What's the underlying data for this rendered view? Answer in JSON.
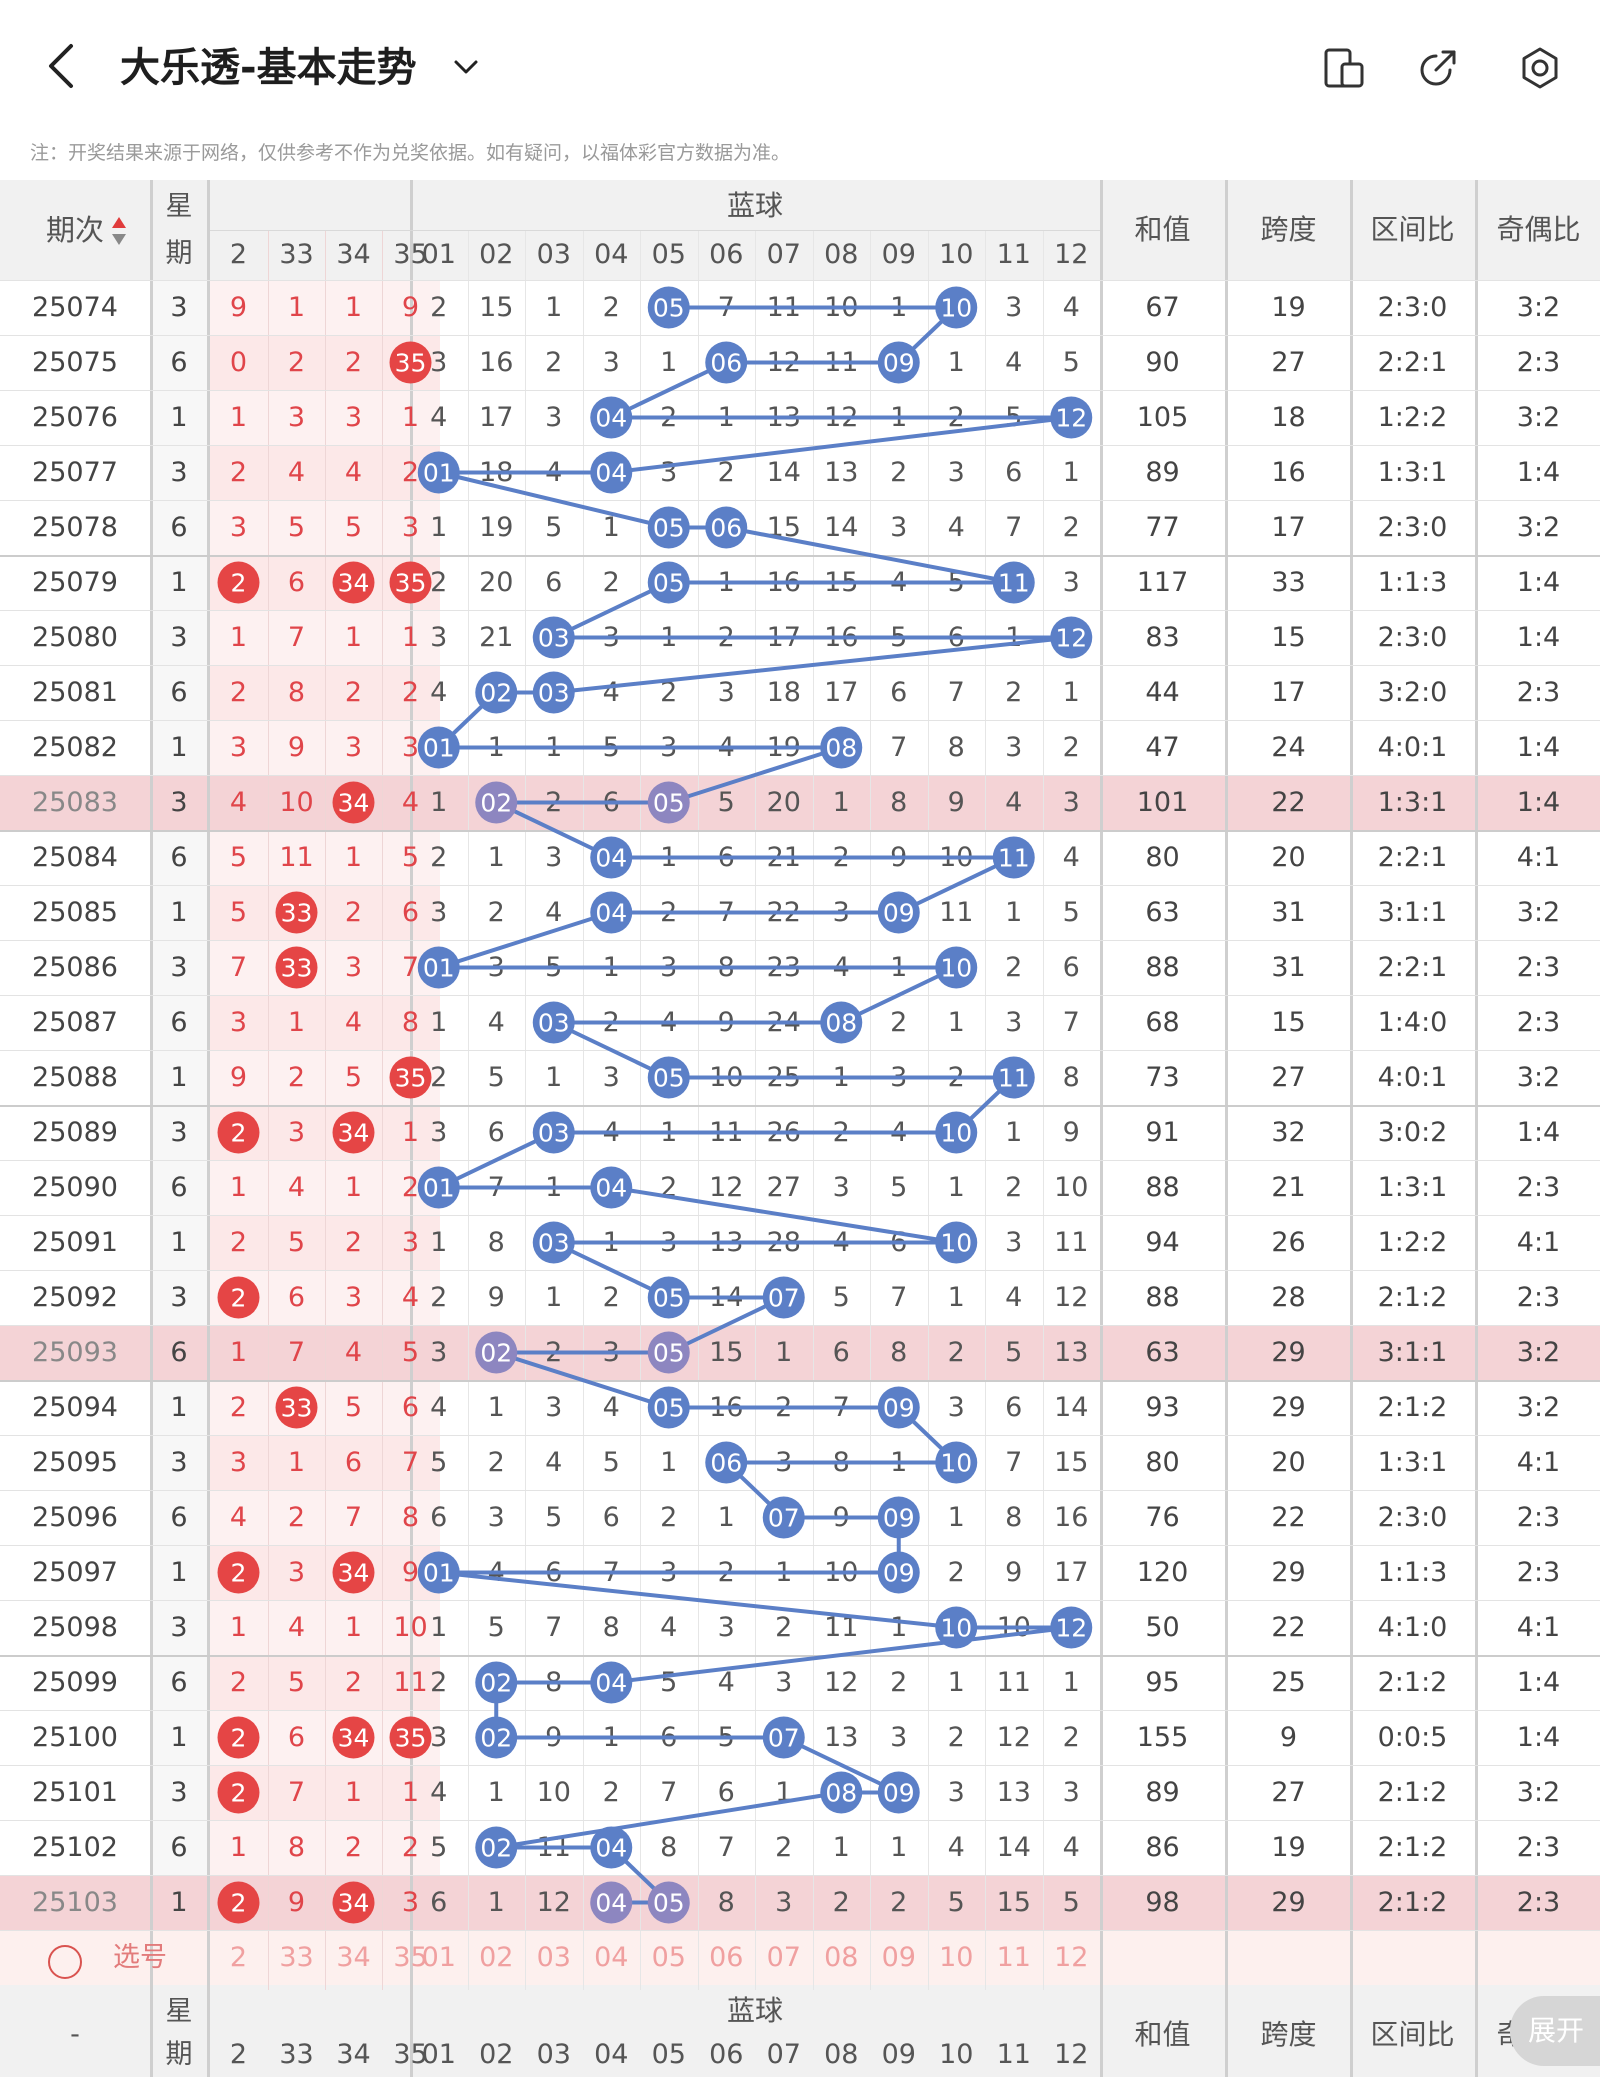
{
  "header": {
    "title": "大乐透-基本走势",
    "note": "注：开奖结果来源于网络，仅供参考不作为兑奖依据。如有疑问，以福体彩官方数据为准。"
  },
  "table": {
    "headers": {
      "period": "期次",
      "weekday_top": "星",
      "weekday_bottom": "期",
      "blue_group": "蓝球",
      "sum": "和值",
      "span": "跨度",
      "zone": "区间比",
      "odd_even": "奇偶比"
    },
    "front_cols": [
      "2",
      "33",
      "34",
      "35"
    ],
    "blue_cols": [
      "01",
      "02",
      "03",
      "04",
      "05",
      "06",
      "07",
      "08",
      "09",
      "10",
      "11",
      "12"
    ],
    "rows": [
      {
        "p": "25074",
        "w": "3",
        "f": [
          "9",
          "1",
          "1",
          "9"
        ],
        "b": [
          "2",
          "15",
          "1",
          "2",
          "05",
          "7",
          "11",
          "10",
          "1",
          "10",
          "3",
          "4"
        ],
        "s": "67",
        "k": "19",
        "z": "2:3:0",
        "o": "3:2"
      },
      {
        "p": "25075",
        "w": "6",
        "f": [
          "0",
          "2",
          "2",
          "35"
        ],
        "b": [
          "3",
          "16",
          "2",
          "3",
          "1",
          "06",
          "12",
          "11",
          "09",
          "1",
          "4",
          "5"
        ],
        "s": "90",
        "k": "27",
        "z": "2:2:1",
        "o": "2:3"
      },
      {
        "p": "25076",
        "w": "1",
        "f": [
          "1",
          "3",
          "3",
          "1"
        ],
        "b": [
          "4",
          "17",
          "3",
          "04",
          "2",
          "1",
          "13",
          "12",
          "1",
          "2",
          "5",
          "12"
        ],
        "s": "105",
        "k": "18",
        "z": "1:2:2",
        "o": "3:2"
      },
      {
        "p": "25077",
        "w": "3",
        "f": [
          "2",
          "4",
          "4",
          "2"
        ],
        "b": [
          "01",
          "18",
          "4",
          "04",
          "3",
          "2",
          "14",
          "13",
          "2",
          "3",
          "6",
          "1"
        ],
        "s": "89",
        "k": "16",
        "z": "1:3:1",
        "o": "1:4"
      },
      {
        "p": "25078",
        "w": "6",
        "f": [
          "3",
          "5",
          "5",
          "3"
        ],
        "b": [
          "1",
          "19",
          "5",
          "1",
          "05",
          "06",
          "15",
          "14",
          "3",
          "4",
          "7",
          "2"
        ],
        "s": "77",
        "k": "17",
        "z": "2:3:0",
        "o": "3:2"
      },
      {
        "p": "25079",
        "w": "1",
        "f": [
          "2",
          "6",
          "34",
          "35"
        ],
        "b": [
          "2",
          "20",
          "6",
          "2",
          "05",
          "1",
          "16",
          "15",
          "4",
          "5",
          "11",
          "3"
        ],
        "s": "117",
        "k": "33",
        "z": "1:1:3",
        "o": "1:4"
      },
      {
        "p": "25080",
        "w": "3",
        "f": [
          "1",
          "7",
          "1",
          "1"
        ],
        "b": [
          "3",
          "21",
          "03",
          "3",
          "1",
          "2",
          "17",
          "16",
          "5",
          "6",
          "1",
          "12"
        ],
        "s": "83",
        "k": "15",
        "z": "2:3:0",
        "o": "1:4"
      },
      {
        "p": "25081",
        "w": "6",
        "f": [
          "2",
          "8",
          "2",
          "2"
        ],
        "b": [
          "4",
          "02",
          "03",
          "4",
          "2",
          "3",
          "18",
          "17",
          "6",
          "7",
          "2",
          "1"
        ],
        "s": "44",
        "k": "17",
        "z": "3:2:0",
        "o": "2:3"
      },
      {
        "p": "25082",
        "w": "1",
        "f": [
          "3",
          "9",
          "3",
          "3"
        ],
        "b": [
          "01",
          "1",
          "1",
          "5",
          "3",
          "4",
          "19",
          "08",
          "7",
          "8",
          "3",
          "2"
        ],
        "s": "47",
        "k": "24",
        "z": "4:0:1",
        "o": "1:4"
      },
      {
        "p": "25083",
        "w": "3",
        "f": [
          "4",
          "10",
          "34",
          "4"
        ],
        "b": [
          "1",
          "02",
          "2",
          "6",
          "05",
          "5",
          "20",
          "1",
          "8",
          "9",
          "4",
          "3"
        ],
        "s": "101",
        "k": "22",
        "z": "1:3:1",
        "o": "1:4"
      },
      {
        "p": "25084",
        "w": "6",
        "f": [
          "5",
          "11",
          "1",
          "5"
        ],
        "b": [
          "2",
          "1",
          "3",
          "04",
          "1",
          "6",
          "21",
          "2",
          "9",
          "10",
          "11",
          "4"
        ],
        "s": "80",
        "k": "20",
        "z": "2:2:1",
        "o": "4:1"
      },
      {
        "p": "25085",
        "w": "1",
        "f": [
          "5",
          "33",
          "2",
          "6"
        ],
        "b": [
          "3",
          "2",
          "4",
          "04",
          "2",
          "7",
          "22",
          "3",
          "09",
          "11",
          "1",
          "5"
        ],
        "s": "63",
        "k": "31",
        "z": "3:1:1",
        "o": "3:2"
      },
      {
        "p": "25086",
        "w": "3",
        "f": [
          "7",
          "33",
          "3",
          "7"
        ],
        "b": [
          "01",
          "3",
          "5",
          "1",
          "3",
          "8",
          "23",
          "4",
          "1",
          "10",
          "2",
          "6"
        ],
        "s": "88",
        "k": "31",
        "z": "2:2:1",
        "o": "2:3"
      },
      {
        "p": "25087",
        "w": "6",
        "f": [
          "3",
          "1",
          "4",
          "8"
        ],
        "b": [
          "1",
          "4",
          "03",
          "2",
          "4",
          "9",
          "24",
          "08",
          "2",
          "1",
          "3",
          "7"
        ],
        "s": "68",
        "k": "15",
        "z": "1:4:0",
        "o": "2:3"
      },
      {
        "p": "25088",
        "w": "1",
        "f": [
          "9",
          "2",
          "5",
          "35"
        ],
        "b": [
          "2",
          "5",
          "1",
          "3",
          "05",
          "10",
          "25",
          "1",
          "3",
          "2",
          "11",
          "8"
        ],
        "s": "73",
        "k": "27",
        "z": "4:0:1",
        "o": "3:2"
      },
      {
        "p": "25089",
        "w": "3",
        "f": [
          "2",
          "3",
          "34",
          "1"
        ],
        "b": [
          "3",
          "6",
          "03",
          "4",
          "1",
          "11",
          "26",
          "2",
          "4",
          "10",
          "1",
          "9"
        ],
        "s": "91",
        "k": "32",
        "z": "3:0:2",
        "o": "1:4"
      },
      {
        "p": "25090",
        "w": "6",
        "f": [
          "1",
          "4",
          "1",
          "2"
        ],
        "b": [
          "01",
          "7",
          "1",
          "04",
          "2",
          "12",
          "27",
          "3",
          "5",
          "1",
          "2",
          "10"
        ],
        "s": "88",
        "k": "21",
        "z": "1:3:1",
        "o": "2:3"
      },
      {
        "p": "25091",
        "w": "1",
        "f": [
          "2",
          "5",
          "2",
          "3"
        ],
        "b": [
          "1",
          "8",
          "03",
          "1",
          "3",
          "13",
          "28",
          "4",
          "6",
          "10",
          "3",
          "11"
        ],
        "s": "94",
        "k": "26",
        "z": "1:2:2",
        "o": "4:1"
      },
      {
        "p": "25092",
        "w": "3",
        "f": [
          "2",
          "6",
          "3",
          "4"
        ],
        "b": [
          "2",
          "9",
          "1",
          "2",
          "05",
          "14",
          "07",
          "5",
          "7",
          "1",
          "4",
          "12"
        ],
        "s": "88",
        "k": "28",
        "z": "2:1:2",
        "o": "2:3"
      },
      {
        "p": "25093",
        "w": "6",
        "f": [
          "1",
          "7",
          "4",
          "5"
        ],
        "b": [
          "3",
          "02",
          "2",
          "3",
          "05",
          "15",
          "1",
          "6",
          "8",
          "2",
          "5",
          "13"
        ],
        "s": "63",
        "k": "29",
        "z": "3:1:1",
        "o": "3:2"
      },
      {
        "p": "25094",
        "w": "1",
        "f": [
          "2",
          "33",
          "5",
          "6"
        ],
        "b": [
          "4",
          "1",
          "3",
          "4",
          "05",
          "16",
          "2",
          "7",
          "09",
          "3",
          "6",
          "14"
        ],
        "s": "93",
        "k": "29",
        "z": "2:1:2",
        "o": "3:2"
      },
      {
        "p": "25095",
        "w": "3",
        "f": [
          "3",
          "1",
          "6",
          "7"
        ],
        "b": [
          "5",
          "2",
          "4",
          "5",
          "1",
          "06",
          "3",
          "8",
          "1",
          "10",
          "7",
          "15"
        ],
        "s": "80",
        "k": "20",
        "z": "1:3:1",
        "o": "4:1"
      },
      {
        "p": "25096",
        "w": "6",
        "f": [
          "4",
          "2",
          "7",
          "8"
        ],
        "b": [
          "6",
          "3",
          "5",
          "6",
          "2",
          "1",
          "07",
          "9",
          "09",
          "1",
          "8",
          "16"
        ],
        "s": "76",
        "k": "22",
        "z": "2:3:0",
        "o": "2:3"
      },
      {
        "p": "25097",
        "w": "1",
        "f": [
          "2",
          "3",
          "34",
          "9"
        ],
        "b": [
          "01",
          "4",
          "6",
          "7",
          "3",
          "2",
          "1",
          "10",
          "09",
          "2",
          "9",
          "17"
        ],
        "s": "120",
        "k": "29",
        "z": "1:1:3",
        "o": "2:3"
      },
      {
        "p": "25098",
        "w": "3",
        "f": [
          "1",
          "4",
          "1",
          "10"
        ],
        "b": [
          "1",
          "5",
          "7",
          "8",
          "4",
          "3",
          "2",
          "11",
          "1",
          "10",
          "10",
          "12"
        ],
        "s": "50",
        "k": "22",
        "z": "4:1:0",
        "o": "4:1"
      },
      {
        "p": "25099",
        "w": "6",
        "f": [
          "2",
          "5",
          "2",
          "11"
        ],
        "b": [
          "2",
          "02",
          "8",
          "04",
          "5",
          "4",
          "3",
          "12",
          "2",
          "1",
          "11",
          "1"
        ],
        "s": "95",
        "k": "25",
        "z": "2:1:2",
        "o": "1:4"
      },
      {
        "p": "25100",
        "w": "1",
        "f": [
          "2",
          "6",
          "34",
          "35"
        ],
        "b": [
          "3",
          "02",
          "9",
          "1",
          "6",
          "5",
          "07",
          "13",
          "3",
          "2",
          "12",
          "2"
        ],
        "s": "155",
        "k": "9",
        "z": "0:0:5",
        "o": "1:4"
      },
      {
        "p": "25101",
        "w": "3",
        "f": [
          "2",
          "7",
          "1",
          "1"
        ],
        "b": [
          "4",
          "1",
          "10",
          "2",
          "7",
          "6",
          "1",
          "08",
          "09",
          "3",
          "13",
          "3"
        ],
        "s": "89",
        "k": "27",
        "z": "2:1:2",
        "o": "3:2"
      },
      {
        "p": "25102",
        "w": "6",
        "f": [
          "1",
          "8",
          "2",
          "2"
        ],
        "b": [
          "5",
          "02",
          "11",
          "04",
          "8",
          "7",
          "2",
          "1",
          "1",
          "4",
          "14",
          "4"
        ],
        "s": "86",
        "k": "19",
        "z": "2:1:2",
        "o": "2:3"
      },
      {
        "p": "25103",
        "w": "1",
        "f": [
          "2",
          "9",
          "34",
          "3"
        ],
        "b": [
          "6",
          "1",
          "12",
          "04",
          "05",
          "8",
          "3",
          "2",
          "2",
          "5",
          "15",
          "5"
        ],
        "s": "98",
        "k": "29",
        "z": "2:1:2",
        "o": "2:3"
      }
    ],
    "blue_hits": [
      [
        4,
        9
      ],
      [
        5,
        8
      ],
      [
        3,
        11
      ],
      [
        0,
        3
      ],
      [
        4,
        5
      ],
      [
        4,
        10
      ],
      [
        2,
        11
      ],
      [
        1,
        2
      ],
      [
        0,
        7
      ],
      [
        1,
        4
      ],
      [
        3,
        10
      ],
      [
        3,
        8
      ],
      [
        0,
        9
      ],
      [
        2,
        7
      ],
      [
        4,
        10
      ],
      [
        2,
        9
      ],
      [
        0,
        3
      ],
      [
        2,
        9
      ],
      [
        4,
        6
      ],
      [
        1,
        4
      ],
      [
        4,
        8
      ],
      [
        5,
        9
      ],
      [
        6,
        8
      ],
      [
        0,
        8
      ],
      [
        9,
        11
      ],
      [
        1,
        3
      ],
      [
        1,
        6
      ],
      [
        7,
        8
      ],
      [
        1,
        3
      ],
      [
        3,
        4
      ]
    ],
    "front_hits": [
      [],
      [
        3
      ],
      [],
      [],
      [],
      [
        0,
        2,
        3
      ],
      [],
      [],
      [],
      [
        2
      ],
      [],
      [
        1
      ],
      [
        1
      ],
      [],
      [
        3
      ],
      [
        0,
        2
      ],
      [],
      [],
      [
        0
      ],
      [],
      [
        1
      ],
      [],
      [],
      [
        0,
        2
      ],
      [],
      [],
      [
        0,
        2,
        3
      ],
      [
        0
      ],
      [],
      [
        0,
        2
      ]
    ],
    "highlight_rows": [
      9,
      19,
      29
    ],
    "select_row": {
      "label": "选号",
      "front": [
        "2",
        "33",
        "34",
        "35"
      ],
      "blue": [
        "01",
        "02",
        "03",
        "04",
        "05",
        "06",
        "07",
        "08",
        "09",
        "10",
        "11",
        "12"
      ]
    },
    "footer": {
      "period": "-"
    },
    "expand_label": "展开"
  },
  "icons": [
    "back-arrow-icon",
    "chevron-down-icon",
    "device-icon",
    "share-icon",
    "settings-icon"
  ],
  "colors": {
    "blue_ball": "#5b7fc7",
    "highlight_ball": "#8d86c0",
    "red_ball": "#e54545",
    "red_text": "#e0454a",
    "highlight_row": "#f4d3d6"
  }
}
